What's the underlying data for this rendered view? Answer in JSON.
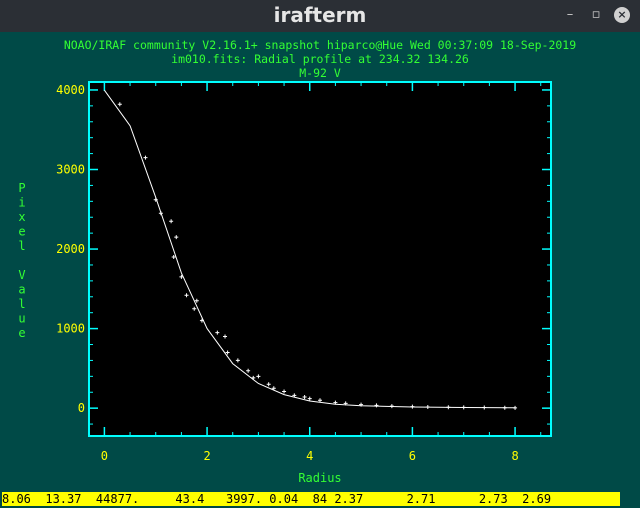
{
  "window": {
    "title": "irafterm",
    "minimize": "–",
    "restore": "▫",
    "close": "×"
  },
  "header": {
    "line1": "NOAO/IRAF community V2.16.1+ snapshot hiparco@Hue Wed 00:37:09 18-Sep-2019",
    "line2": "im010.fits: Radial profile at 234.32 134.26",
    "line3": "M-92 V"
  },
  "status_line": "8.06  13.37  44877.     43.4   3997. 0.04  84 2.37      2.71      2.73  2.69",
  "colors": {
    "background": "#004a47",
    "plot_bg": "#000000",
    "frame": "#00ffff",
    "ticklabel": "#ffff00",
    "label": "#33ff33",
    "data": "#ffffff"
  },
  "chart_data": {
    "type": "scatter",
    "xlabel": "Radius",
    "ylabel": "Pixel Value",
    "xlim": [
      -0.3,
      8.7
    ],
    "ylim": [
      -350,
      4100
    ],
    "x_ticks": [
      "0",
      "2",
      "4",
      "6",
      "8"
    ],
    "y_ticks": [
      "0",
      "1000",
      "2000",
      "3000",
      "4000"
    ],
    "fit_curve": {
      "x": [
        0,
        0.5,
        1.0,
        1.5,
        2.0,
        2.5,
        3.0,
        3.5,
        4.0,
        4.5,
        5.0,
        6.0,
        7.0,
        8.0
      ],
      "y": [
        3997,
        3550,
        2650,
        1700,
        1000,
        560,
        310,
        170,
        90,
        50,
        30,
        15,
        8,
        5
      ]
    },
    "points": {
      "x": [
        0.3,
        0.8,
        1.0,
        1.1,
        1.3,
        1.35,
        1.4,
        1.5,
        1.6,
        1.75,
        1.8,
        1.9,
        2.2,
        2.35,
        2.4,
        2.6,
        2.8,
        2.9,
        3.0,
        3.2,
        3.3,
        3.5,
        3.7,
        3.9,
        4.0,
        4.2,
        4.5,
        4.7,
        5.0,
        5.3,
        5.6,
        6.0,
        6.3,
        6.7,
        7.0,
        7.4,
        7.8,
        8.0
      ],
      "y": [
        3820,
        3150,
        2620,
        2450,
        2350,
        1900,
        2150,
        1650,
        1420,
        1250,
        1350,
        1100,
        950,
        900,
        700,
        600,
        470,
        380,
        400,
        300,
        250,
        210,
        160,
        140,
        120,
        100,
        70,
        60,
        45,
        35,
        25,
        20,
        15,
        12,
        10,
        8,
        5,
        3
      ]
    }
  }
}
